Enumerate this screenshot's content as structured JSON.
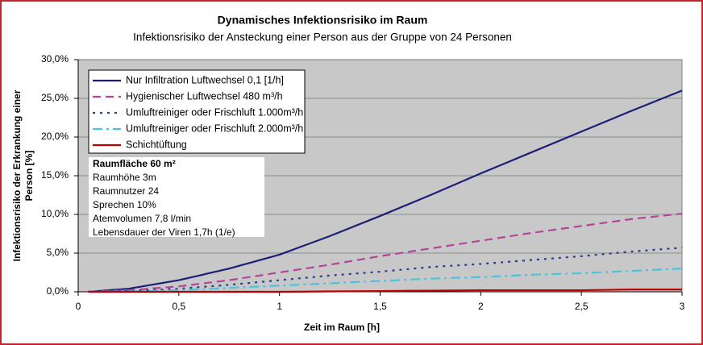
{
  "chart_data": {
    "type": "line",
    "title": "Dynamisches Infektionsrisiko im Raum",
    "subtitle": "Infektionsrisiko der Ansteckung einer Person aus der Gruppe von 24 Personen",
    "ylabel": [
      "Infektionsrisiko der Erkrankung einer",
      "Person [%]"
    ],
    "xlabel": "Zeit im Raum [h]",
    "xlim": [
      0,
      3
    ],
    "xticks": [
      0,
      {
        "value": 0.5,
        "label": "0,5"
      },
      1,
      {
        "value": 1.5,
        "label": "1,5"
      },
      2,
      {
        "value": 2.5,
        "label": "2,5"
      },
      3
    ],
    "ylim": [
      0,
      30
    ],
    "yticks": [
      {
        "value": 0,
        "label": "0,0%"
      },
      {
        "value": 5,
        "label": "5,0%"
      },
      {
        "value": 10,
        "label": "10,0%"
      },
      {
        "value": 15,
        "label": "15,0%"
      },
      {
        "value": 20,
        "label": "20,0%"
      },
      {
        "value": 25,
        "label": "25,0%"
      },
      {
        "value": 30,
        "label": "30,0%"
      }
    ],
    "grid": true,
    "legend": "upper left",
    "x": [
      0.05,
      0.25,
      0.5,
      0.75,
      1,
      1.25,
      1.5,
      1.75,
      2,
      2.25,
      2.5,
      2.75,
      3
    ],
    "series": [
      {
        "name": "Nur Infiltration Luftwechsel 0,1 [1/h]",
        "color": "#1c1f78",
        "dash": "solid",
        "values": [
          0,
          0.4,
          1.5,
          3,
          4.8,
          7.2,
          9.8,
          12.5,
          15.3,
          18,
          20.7,
          23.4,
          26
        ]
      },
      {
        "name": "Hygienischer Luftwechsel 480 m³/h",
        "color": "#b4459c",
        "dash": "dashed",
        "values": [
          0,
          0.2,
          0.7,
          1.5,
          2.5,
          3.5,
          4.6,
          5.6,
          6.6,
          7.6,
          8.5,
          9.4,
          10.1
        ]
      },
      {
        "name": "Umluftreiniger oder Frischluft 1.000m³/h",
        "color": "#2c3c8c",
        "dash": "dotted",
        "values": [
          0,
          0.1,
          0.4,
          0.9,
          1.5,
          2.1,
          2.6,
          3.2,
          3.6,
          4.1,
          4.6,
          5.2,
          5.7
        ]
      },
      {
        "name": "Umluftreiniger oder Frischluft 2.000m³/h",
        "color": "#4cc3dc",
        "dash": "dashdot",
        "values": [
          0,
          0.05,
          0.2,
          0.5,
          0.8,
          1.1,
          1.4,
          1.7,
          1.9,
          2.2,
          2.4,
          2.7,
          3
        ]
      },
      {
        "name": "Schichtüftung",
        "color": "#c00000",
        "dash": "solid",
        "values": [
          0,
          0,
          0,
          0,
          0,
          0.05,
          0.1,
          0.15,
          0.2,
          0.2,
          0.2,
          0.3,
          0.3
        ]
      }
    ],
    "info_box": {
      "title": "Raumfläche 60 m²",
      "lines": [
        "Raumhöhe 3m",
        "Raumnutzer 24",
        "Sprechen 10%",
        "Atemvolumen 7,8 l/min",
        "Lebensdauer der Viren 1,7h (1/e)"
      ]
    }
  }
}
